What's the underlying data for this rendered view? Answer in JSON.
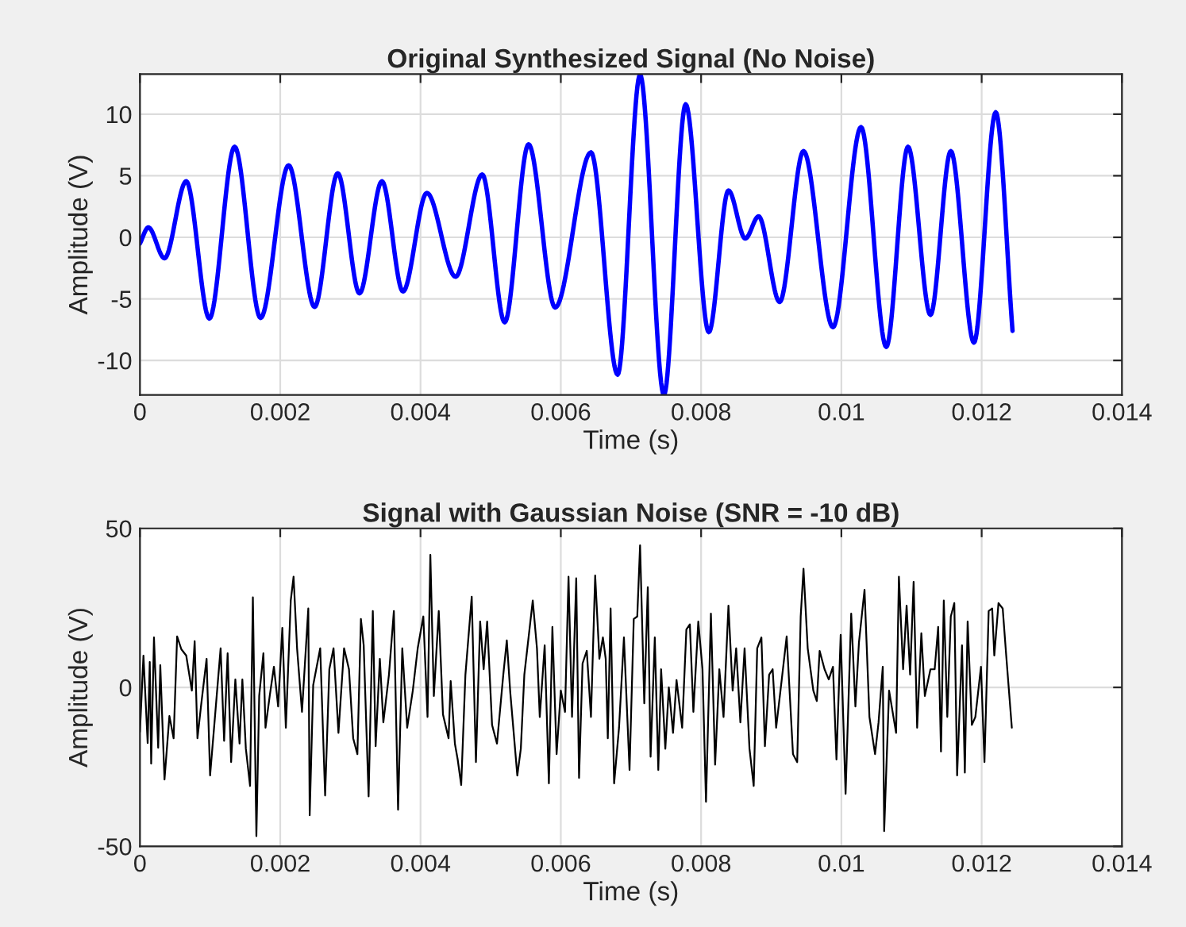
{
  "chart_data": [
    {
      "type": "line",
      "title": "Original Synthesized Signal (No Noise)",
      "xlabel": "Time (s)",
      "ylabel": "Amplitude (V)",
      "xlim": [
        0,
        0.014
      ],
      "xticks": [
        0,
        0.002,
        0.004,
        0.006,
        0.008,
        0.01,
        0.012,
        0.014
      ],
      "ylim": [
        -12.8,
        13.25
      ],
      "yticks": [
        -10,
        -5,
        0,
        5,
        10
      ],
      "grid": true,
      "line_style": "solid",
      "series": [
        {
          "color": "#0000ff",
          "x": [
            0,
            0.00012,
            0.00035,
            0.00066,
            0.00099,
            0.00135,
            0.00172,
            0.00212,
            0.00249,
            0.00282,
            0.00313,
            0.00345,
            0.00375,
            0.00409,
            0.0045,
            0.00488,
            0.0052,
            0.00554,
            0.00592,
            0.00643,
            0.00681,
            0.00713,
            0.00747,
            0.00778,
            0.00811,
            0.00839,
            0.00863,
            0.00882,
            0.00912,
            0.00946,
            0.00988,
            0.01028,
            0.01064,
            0.01095,
            0.01127,
            0.01156,
            0.01189,
            0.0122,
            0.01244
          ],
          "values": [
            -0.5,
            0.8,
            -1.7,
            4.55,
            -6.6,
            7.35,
            -6.55,
            5.85,
            -5.65,
            5.2,
            -4.55,
            4.55,
            -4.4,
            3.6,
            -3.2,
            5.1,
            -6.9,
            7.55,
            -5.7,
            6.9,
            -11.15,
            13.2,
            -12.8,
            10.8,
            -7.7,
            3.8,
            -0.1,
            1.7,
            -5.25,
            7.0,
            -7.3,
            8.95,
            -8.9,
            7.35,
            -6.3,
            7.0,
            -8.55,
            10.15,
            -7.6
          ]
        }
      ]
    },
    {
      "type": "line",
      "title": "Signal with Gaussian Noise (SNR = -10 dB)",
      "xlabel": "Time (s)",
      "ylabel": "Amplitude (V)",
      "xlim": [
        0,
        0.014
      ],
      "xticks": [
        0,
        0.002,
        0.004,
        0.006,
        0.008,
        0.01,
        0.012,
        0.014
      ],
      "ylim": [
        -50,
        50
      ],
      "yticks": [
        -50,
        0,
        50
      ],
      "grid": true,
      "line_style": "solid",
      "series": [
        {
          "color": "#000000",
          "x": [
            0,
            5e-05,
            0.00011,
            0.00014,
            0.00016,
            0.0002,
            0.00026,
            0.00029,
            0.00035,
            0.00042,
            0.00048,
            0.00053,
            0.00059,
            0.00066,
            0.00074,
            0.00078,
            0.00082,
            0.00087,
            0.00095,
            0.001,
            0.00106,
            0.00115,
            0.0012,
            0.00125,
            0.0013,
            0.00136,
            0.00142,
            0.00146,
            0.00151,
            0.00157,
            0.00161,
            0.00166,
            0.0017,
            0.00176,
            0.00179,
            0.00185,
            0.00191,
            0.00197,
            0.00203,
            0.00208,
            0.00215,
            0.00219,
            0.00224,
            0.00231,
            0.0024,
            0.00242,
            0.00247,
            0.00257,
            0.00264,
            0.0027,
            0.00276,
            0.00283,
            0.00291,
            0.00298,
            0.00304,
            0.0031,
            0.00315,
            0.00319,
            0.00326,
            0.00332,
            0.00336,
            0.00342,
            0.00347,
            0.00355,
            0.00362,
            0.00368,
            0.00374,
            0.00381,
            0.00389,
            0.00396,
            0.00404,
            0.0041,
            0.00414,
            0.00419,
            0.00426,
            0.00432,
            0.0044,
            0.00443,
            0.00449,
            0.00453,
            0.00458,
            0.00464,
            0.00473,
            0.00479,
            0.00485,
            0.0049,
            0.00495,
            0.00502,
            0.00509,
            0.00518,
            0.00523,
            0.00528,
            0.00538,
            0.00543,
            0.00548,
            0.0056,
            0.00566,
            0.0057,
            0.00577,
            0.00583,
            0.00588,
            0.00594,
            0.006,
            0.00606,
            0.00611,
            0.00616,
            0.00622,
            0.00626,
            0.00631,
            0.00637,
            0.00643,
            0.00649,
            0.00655,
            0.0066,
            0.00664,
            0.00667,
            0.00671,
            0.00676,
            0.00683,
            0.0069,
            0.00698,
            0.00704,
            0.00709,
            0.00713,
            0.00719,
            0.00724,
            0.00728,
            0.00734,
            0.00739,
            0.00743,
            0.00749,
            0.00754,
            0.0076,
            0.00765,
            0.00773,
            0.00779,
            0.00784,
            0.00789,
            0.00796,
            0.00802,
            0.00807,
            0.00814,
            0.0082,
            0.00826,
            0.00832,
            0.00839,
            0.00845,
            0.0085,
            0.00856,
            0.00862,
            0.00869,
            0.00875,
            0.0088,
            0.00886,
            0.00891,
            0.00897,
            0.00902,
            0.00907,
            0.00915,
            0.00922,
            0.00931,
            0.00937,
            0.00942,
            0.00946,
            0.00952,
            0.0096,
            0.00965,
            0.00969,
            0.00976,
            0.00982,
            0.00988,
            0.00993,
            0.00999,
            0.01006,
            0.01014,
            0.0102,
            0.01025,
            0.01033,
            0.0104,
            0.01048,
            0.01053,
            0.01059,
            0.01061,
            0.01068,
            0.01078,
            0.01082,
            0.01088,
            0.01093,
            0.01098,
            0.01103,
            0.01108,
            0.01114,
            0.01119,
            0.01127,
            0.01133,
            0.01138,
            0.01142,
            0.01146,
            0.01151,
            0.01156,
            0.01161,
            0.01165,
            0.01172,
            0.01176,
            0.0118,
            0.01186,
            0.01191,
            0.01199,
            0.01204,
            0.0121,
            0.01215,
            0.01218,
            0.01224,
            0.0123,
            0.01235,
            0.01243
          ],
          "values": [
            -14,
            10,
            -17.5,
            8,
            -24,
            15.7,
            -19,
            7,
            -29,
            -9,
            -16,
            16,
            12,
            10,
            -1,
            14.5,
            -16,
            -6,
            9,
            -27.7,
            -11.8,
            12.3,
            -16.8,
            10.7,
            -23.5,
            2.5,
            -17.7,
            2.5,
            -19.3,
            -31,
            28.3,
            -46.8,
            -2.7,
            10.7,
            -12.7,
            -2.7,
            6.5,
            -6,
            18.7,
            -12.7,
            27.3,
            34.8,
            12.3,
            -7.7,
            24.8,
            -40.2,
            0.7,
            12.3,
            -34,
            5.7,
            12.3,
            -14.3,
            12.3,
            5.7,
            -16,
            -21,
            21.5,
            13.2,
            -34.3,
            24,
            -18.5,
            9,
            -11,
            4,
            24,
            -38.5,
            12.3,
            -12.7,
            -1,
            12.3,
            22.3,
            -9.3,
            41.7,
            -2.7,
            24,
            -8.5,
            -16,
            2,
            -17.7,
            -22.7,
            -30.7,
            4,
            28.5,
            -23.5,
            20.7,
            5.7,
            20.7,
            -11.8,
            -17.7,
            4,
            14.8,
            -1.7,
            -27.7,
            -19.3,
            4,
            27.3,
            12.3,
            -9.3,
            13.2,
            -30.2,
            19,
            -21,
            -1,
            -7.7,
            34.8,
            -9.3,
            34.3,
            -28.5,
            7.5,
            11.5,
            -9.3,
            35.2,
            9,
            15.7,
            9,
            -16,
            24.8,
            -30.2,
            -12.7,
            15.7,
            -26,
            21.5,
            22.3,
            44.7,
            -5,
            31.5,
            -21.8,
            15.7,
            -26,
            5.7,
            -19.3,
            0,
            -14.3,
            2.3,
            -12.7,
            18.2,
            19.8,
            -7.7,
            20.7,
            5.7,
            -36,
            23.2,
            -24.3,
            5.7,
            -9.3,
            25.7,
            -1,
            12.3,
            -11,
            12.3,
            -19.3,
            -31,
            12.3,
            15.7,
            -18.5,
            4,
            5.7,
            -12.7,
            2.5,
            16,
            -21,
            -23.5,
            22.3,
            37.3,
            12.3,
            -1,
            -4.3,
            11.5,
            5.7,
            2.5,
            6.5,
            -22.7,
            16.5,
            -33.5,
            23.2,
            -6,
            14,
            30.7,
            -9.3,
            -21,
            -11,
            6.5,
            -45.2,
            -1,
            -14.3,
            34.8,
            5.7,
            25.7,
            4,
            33.2,
            -12.7,
            17,
            -2.7,
            5.7,
            5.7,
            19,
            -20.2,
            27.3,
            -9.3,
            22.3,
            26.5,
            -27.7,
            13.2,
            -26.8,
            20.7,
            -11.8,
            -9.3,
            6.5,
            -23.5,
            24,
            24.8,
            10,
            26.5,
            24.8,
            10,
            -12.7
          ]
        }
      ]
    }
  ]
}
